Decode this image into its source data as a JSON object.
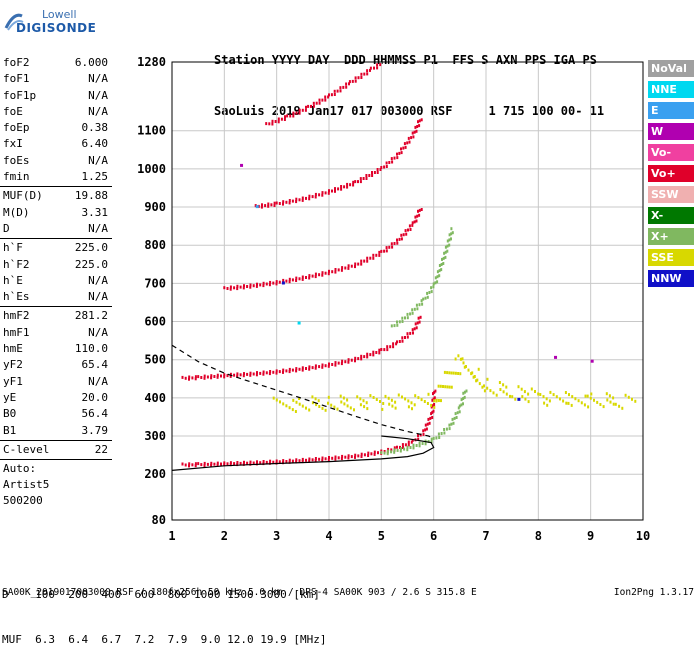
{
  "logo": {
    "line1": "Lowell",
    "line2": "DIGISONDE"
  },
  "header": {
    "line1": "Station YYYY DAY  DDD HHMMSS P1  FFS S AXN PPS IGA PS",
    "line2": "SaoLuis 2019 Jan17 017 003000 RSF     1 715 100 00- 11"
  },
  "params": {
    "group1": [
      {
        "label": "foF2",
        "value": "6.000"
      },
      {
        "label": "foF1",
        "value": "N/A"
      },
      {
        "label": "foF1p",
        "value": "N/A"
      },
      {
        "label": "foE",
        "value": "N/A"
      },
      {
        "label": "foEp",
        "value": "0.38"
      },
      {
        "label": "fxI",
        "value": "6.40"
      },
      {
        "label": "foEs",
        "value": "N/A"
      },
      {
        "label": "fmin",
        "value": "1.25"
      }
    ],
    "group2": [
      {
        "label": "MUF(D)",
        "value": "19.88"
      },
      {
        "label": "M(D)",
        "value": "3.31"
      },
      {
        "label": "D",
        "value": "N/A"
      }
    ],
    "group3": [
      {
        "label": "h`F",
        "value": "225.0"
      },
      {
        "label": "h`F2",
        "value": "225.0"
      },
      {
        "label": "h`E",
        "value": "N/A"
      },
      {
        "label": "h`Es",
        "value": "N/A"
      }
    ],
    "group4": [
      {
        "label": "hmF2",
        "value": "281.2"
      },
      {
        "label": "hmF1",
        "value": "N/A"
      },
      {
        "label": "hmE",
        "value": "110.0"
      },
      {
        "label": "yF2",
        "value": "65.4"
      },
      {
        "label": "yF1",
        "value": "N/A"
      },
      {
        "label": "yE",
        "value": "20.0"
      },
      {
        "label": "B0",
        "value": "56.4"
      },
      {
        "label": "B1",
        "value": "3.79"
      }
    ],
    "group5": [
      {
        "label": "C-level",
        "value": "22"
      }
    ],
    "auto_lines": [
      "Auto:",
      "Artist5",
      "500200"
    ]
  },
  "legend": [
    {
      "label": "NoVal",
      "color": "#a0a0a0"
    },
    {
      "label": "NNE",
      "color": "#00d8f0"
    },
    {
      "label": "E",
      "color": "#3aa0f0"
    },
    {
      "label": "W",
      "color": "#b000b0"
    },
    {
      "label": "Vo-",
      "color": "#f040a0"
    },
    {
      "label": "Vo+",
      "color": "#e0002a"
    },
    {
      "label": "SSW",
      "color": "#f0b0b0"
    },
    {
      "label": "X-",
      "color": "#007800"
    },
    {
      "label": "X+",
      "color": "#80b860"
    },
    {
      "label": "SSE",
      "color": "#d8d800"
    },
    {
      "label": "NNW",
      "color": "#1010c8"
    }
  ],
  "mufTable": {
    "line1": "D    100  200  400  600  800 1000 1500 3000 [km]",
    "line2": "MUF  6.3  6.4  6.7  7.2  7.9  9.0 12.0 19.9 [MHz]"
  },
  "footer": {
    "left": "SA00K_2019017003000.RSF / 180fx256h 50 kHz 5.0 km / DPS-4 SA00K 903 / 2.6 S 315.8 E",
    "right": "Ion2Png 1.3.17"
  },
  "chart_data": {
    "type": "scatter",
    "title": "",
    "xlabel": "",
    "ylabel": "",
    "xlim": [
      1,
      10
    ],
    "ylim": [
      80,
      1280
    ],
    "xticks": [
      1,
      2,
      3,
      4,
      5,
      6,
      7,
      8,
      9,
      10
    ],
    "yticks": [
      80,
      200,
      300,
      400,
      500,
      600,
      700,
      800,
      900,
      1000,
      1100,
      1280
    ],
    "grid": true,
    "legend_placement": "right",
    "series": [
      {
        "name": "Vo+ F2 trace (1st hop)",
        "color": "#e0002a",
        "x": [
          1.2,
          1.5,
          2.0,
          2.5,
          3.0,
          3.5,
          4.0,
          4.5,
          5.0,
          5.3,
          5.6,
          5.8,
          5.95,
          6.0
        ],
        "y": [
          228,
          229,
          231,
          233,
          236,
          240,
          245,
          251,
          262,
          272,
          290,
          315,
          360,
          430
        ]
      },
      {
        "name": "Vo+ F2 trace (2nd hop)",
        "color": "#e0002a",
        "x": [
          1.2,
          1.5,
          2.0,
          2.5,
          3.0,
          3.5,
          4.0,
          4.5,
          5.0,
          5.3,
          5.6,
          5.75
        ],
        "y": [
          455,
          457,
          462,
          466,
          472,
          480,
          490,
          505,
          528,
          548,
          580,
          620
        ]
      },
      {
        "name": "Vo+ F2 trace (3rd hop)",
        "color": "#e0002a",
        "x": [
          2.0,
          2.5,
          3.0,
          3.5,
          4.0,
          4.5,
          5.0,
          5.3,
          5.6,
          5.75
        ],
        "y": [
          690,
          697,
          706,
          718,
          733,
          752,
          785,
          815,
          860,
          905
        ]
      },
      {
        "name": "Vo+ F2 trace (4th hop)",
        "color": "#e0002a",
        "x": [
          2.6,
          3.0,
          3.5,
          4.0,
          4.5,
          5.0,
          5.3,
          5.6,
          5.75
        ],
        "y": [
          905,
          912,
          925,
          944,
          968,
          1005,
          1040,
          1095,
          1140
        ]
      },
      {
        "name": "Vo+ F2 trace (5th hop)",
        "color": "#e0002a",
        "x": [
          2.8,
          3.2,
          3.6,
          4.0,
          4.4,
          4.8,
          5.0
        ],
        "y": [
          1120,
          1140,
          1165,
          1195,
          1230,
          1265,
          1280
        ]
      },
      {
        "name": "X+ trace",
        "color": "#80b860",
        "x": [
          5.0,
          5.5,
          6.0,
          6.3,
          6.5,
          6.6
        ],
        "y": [
          258,
          272,
          295,
          330,
          380,
          430
        ]
      },
      {
        "name": "X+ multi-hop",
        "color": "#80b860",
        "x": [
          5.2,
          5.5,
          5.8,
          6.0,
          6.2,
          6.35
        ],
        "y": [
          590,
          620,
          660,
          700,
          780,
          850
        ]
      },
      {
        "name": "SSE spread",
        "color": "#d8d800",
        "x": [
          3.0,
          4.0,
          5.0,
          6.0,
          6.5,
          7.0,
          7.5,
          8.0,
          8.5,
          9.0,
          9.5,
          9.8
        ],
        "y": [
          385,
          390,
          392,
          395,
          500,
          430,
          420,
          405,
          400,
          398,
          395,
          395
        ]
      },
      {
        "name": "Profile (solid)",
        "color": "#000000",
        "x": [
          1.0,
          2.0,
          3.0,
          4.0,
          5.0,
          5.5,
          5.8,
          6.0,
          5.95,
          5.5,
          5.0
        ],
        "y": [
          210,
          222,
          228,
          233,
          240,
          246,
          255,
          270,
          283,
          293,
          300
        ]
      },
      {
        "name": "Profile (dashed)",
        "color": "#000000",
        "x": [
          1.0,
          1.5,
          2.0,
          2.5,
          3.0,
          3.5,
          4.0,
          4.5,
          5.0,
          5.5,
          5.9,
          6.0
        ],
        "y": [
          538,
          495,
          465,
          442,
          420,
          398,
          375,
          352,
          330,
          312,
          300,
          295
        ]
      }
    ]
  }
}
